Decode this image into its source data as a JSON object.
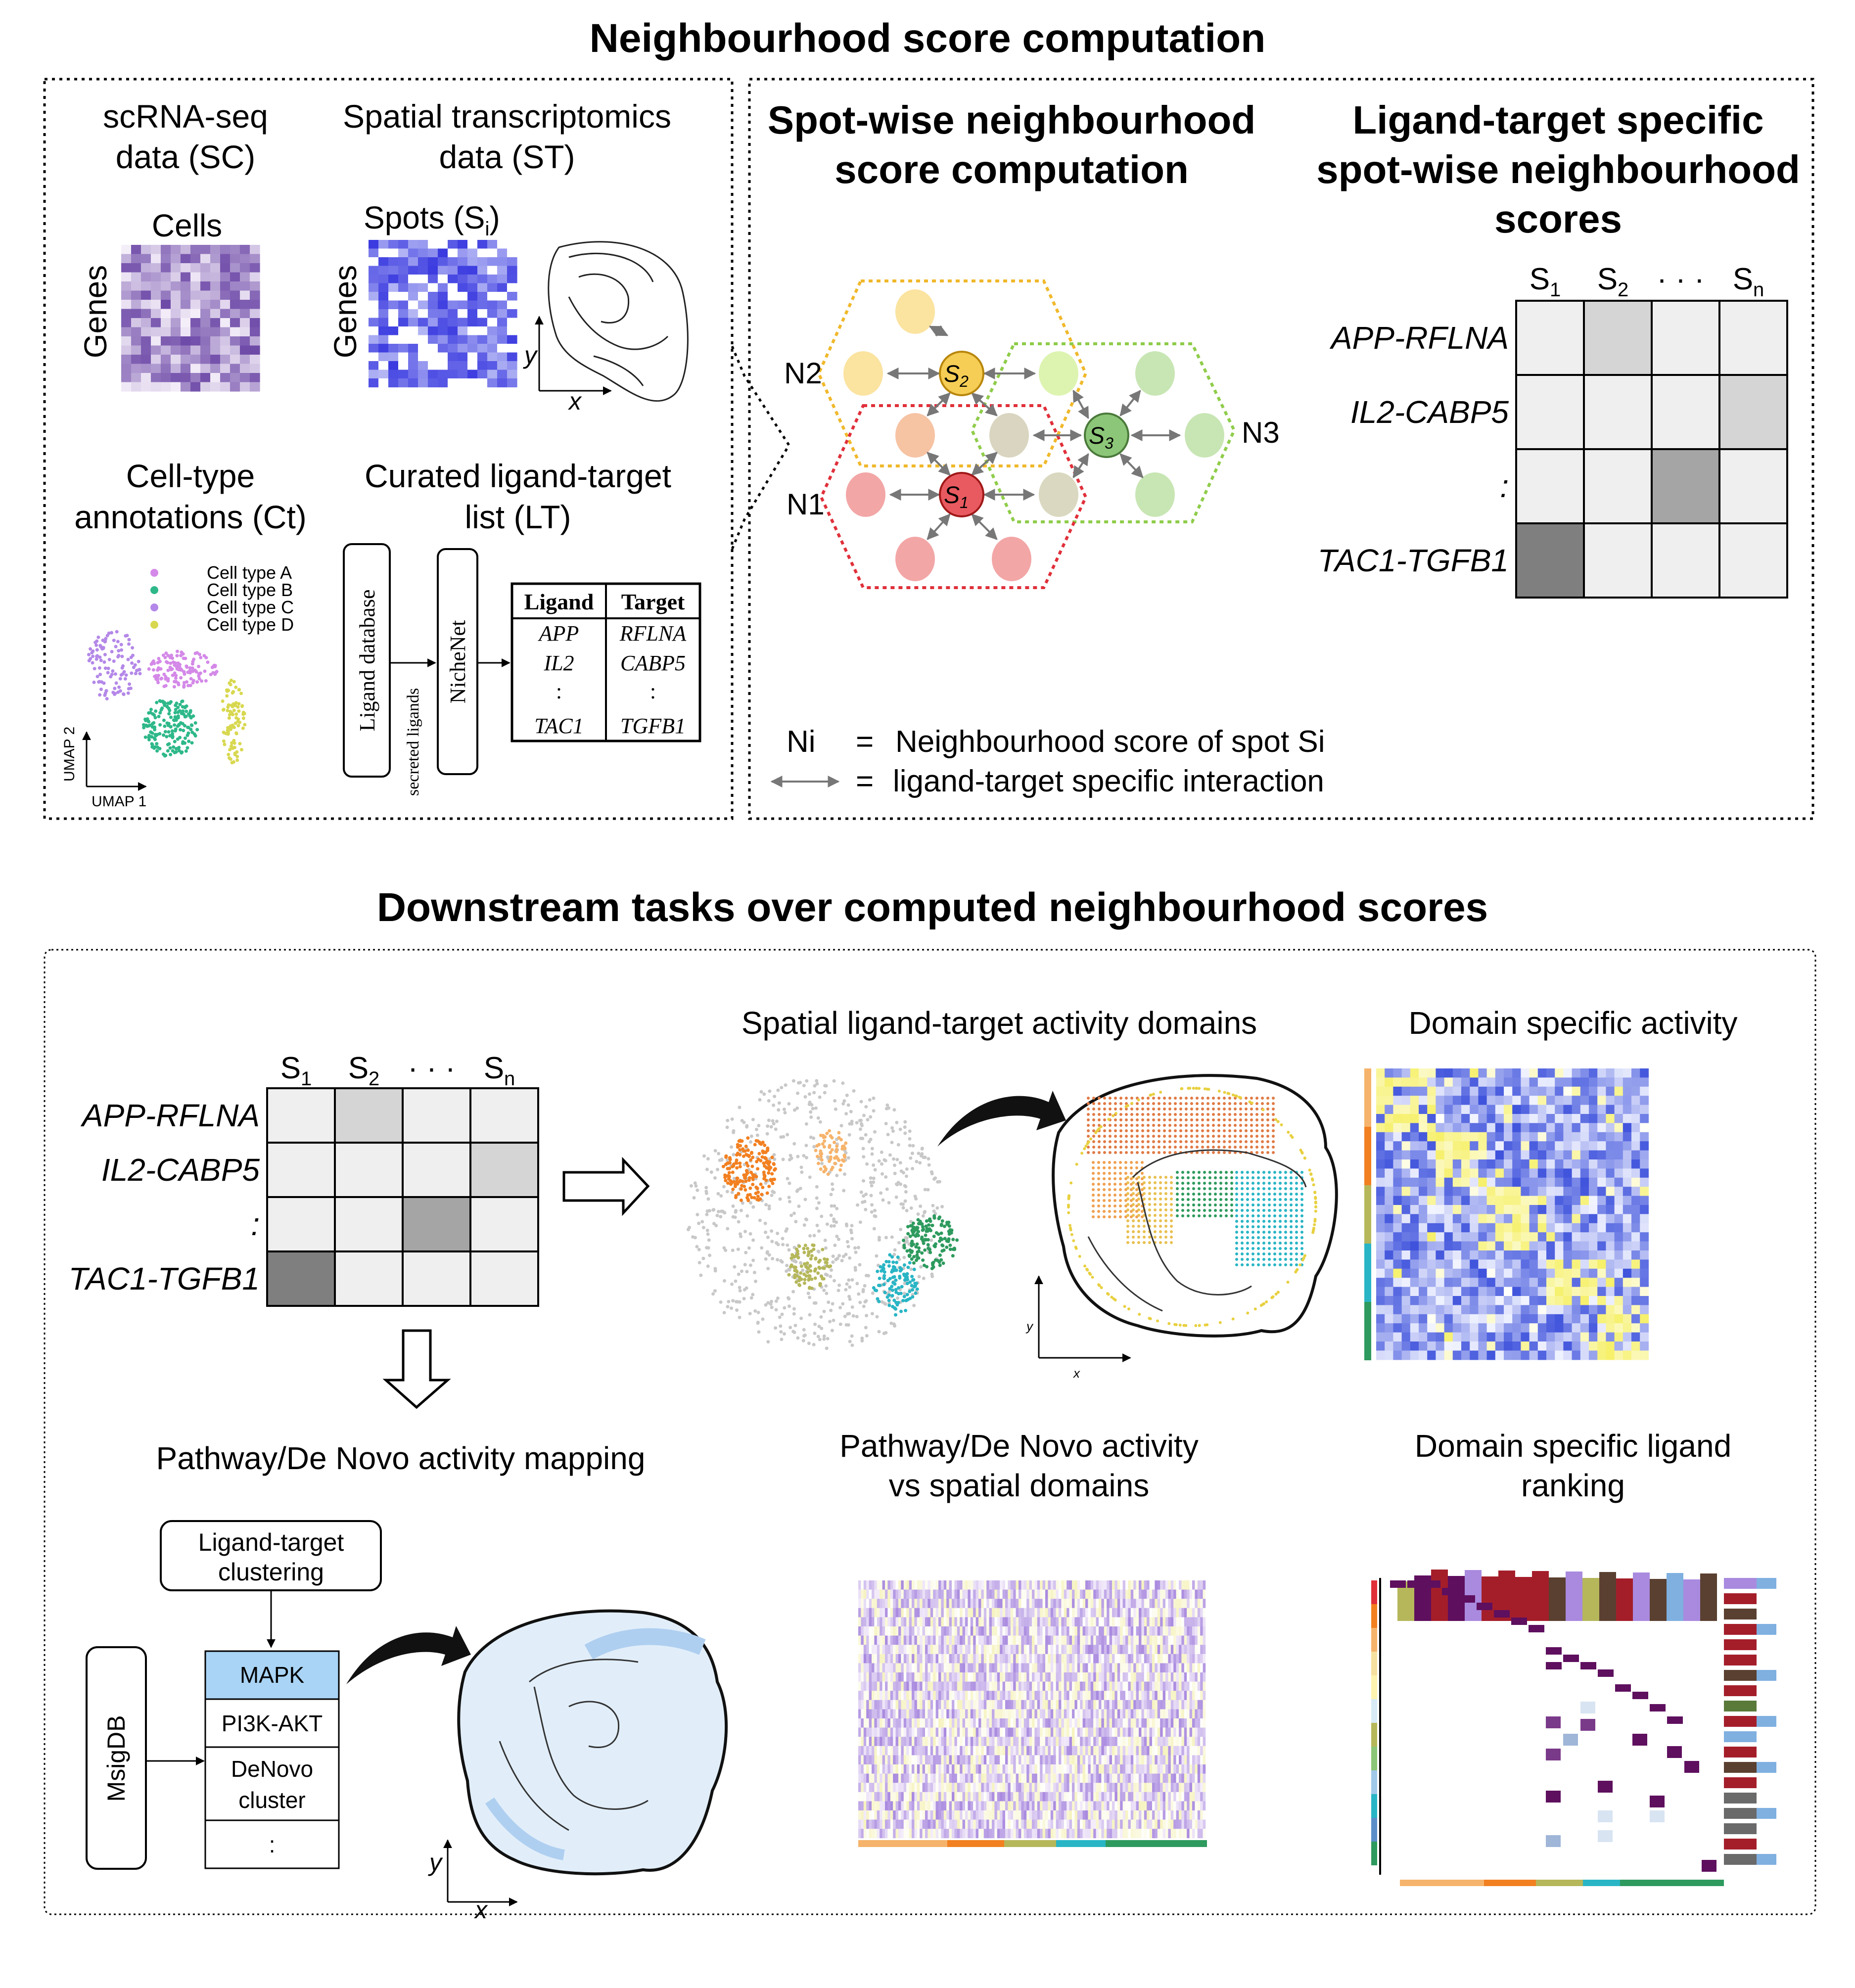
{
  "titles": {
    "top": "Neighbourhood score computation",
    "bottom": "Downstream tasks over computed neighbourhood scores"
  },
  "inputs": {
    "sc_line1": "scRNA-seq",
    "sc_line2": "data (SC)",
    "sc_cols": "Cells",
    "sc_rows": "Genes",
    "st_line1": "Spatial transcriptomics",
    "st_line2": "data (ST)",
    "st_cols": "Spots (S",
    "st_cols_sub": "i",
    "st_cols_end": ")",
    "st_rows": "Genes",
    "axis_x": "x",
    "axis_y": "y",
    "ct_line1": "Cell-type",
    "ct_line2": "annotations (Ct)",
    "legend": [
      "Cell type A",
      "Cell type B",
      "Cell type C",
      "Cell type D"
    ],
    "umap1": "UMAP 1",
    "umap2": "UMAP 2",
    "lt_line1": "Curated ligand-target",
    "lt_line2": "list (LT)",
    "ligand_db": "Ligand database",
    "secreted": "secreted ligands",
    "nichenet": "NicheNet",
    "table_head": [
      "Ligand",
      "Target"
    ],
    "ligands": [
      "APP",
      "IL2",
      ":",
      "TAC1"
    ],
    "targets": [
      "RFLNA",
      "CABP5",
      ":",
      "TGFB1"
    ]
  },
  "spotwise": {
    "title1": "Spot-wise neighbourhood",
    "title2": "score computation",
    "n_labels": [
      "N2",
      "N1",
      "N3"
    ],
    "s_labels": [
      "S",
      "S",
      "S"
    ],
    "s_subs": [
      "2",
      "1",
      "3"
    ],
    "legend_ni_key": "Ni",
    "legend_ni_eq": "=",
    "legend_ni_val": "Neighbourhood score of spot Si",
    "legend_arrow_eq": "=",
    "legend_arrow_val": "ligand-target specific interaction"
  },
  "scores": {
    "title1": "Ligand-target specific",
    "title2": "spot-wise neighbourhood",
    "title3": "scores",
    "cols": [
      "S",
      "S",
      "· · ·",
      "S"
    ],
    "col_subs": [
      "1",
      "2",
      "",
      "n"
    ],
    "rows": [
      "APP-RFLNA",
      "IL2-CABP5",
      ":",
      "TAC1-TGFB1"
    ]
  },
  "downstream": {
    "domains_title": "Spatial ligand-target activity domains",
    "domain_activity_title": "Domain specific activity",
    "pathway_mapping_title": "Pathway/De Novo activity mapping",
    "clustering_line1": "Ligand-target",
    "clustering_line2": "clustering",
    "msigdb": "MsigDB",
    "pathways": [
      "MAPK",
      "PI3K-AKT",
      "DeNovo",
      "cluster",
      ":"
    ],
    "vs_line1": "Pathway/De Novo activity",
    "vs_line2": "vs spatial domains",
    "ranking_line1": "Domain specific ligand",
    "ranking_line2": "ranking"
  },
  "colors": {
    "domain_orange_light": "#F6B36B",
    "domain_orange": "#F28020",
    "domain_olive": "#B5B75A",
    "domain_cyan": "#29B5C5",
    "domain_green": "#2E9A5E",
    "s1_red": "#E0555A",
    "s2_yellow": "#E8B93A",
    "s3_green": "#7DB96A",
    "mapk_blue": "#A9D4F5",
    "purple": "#5E0F5E"
  }
}
